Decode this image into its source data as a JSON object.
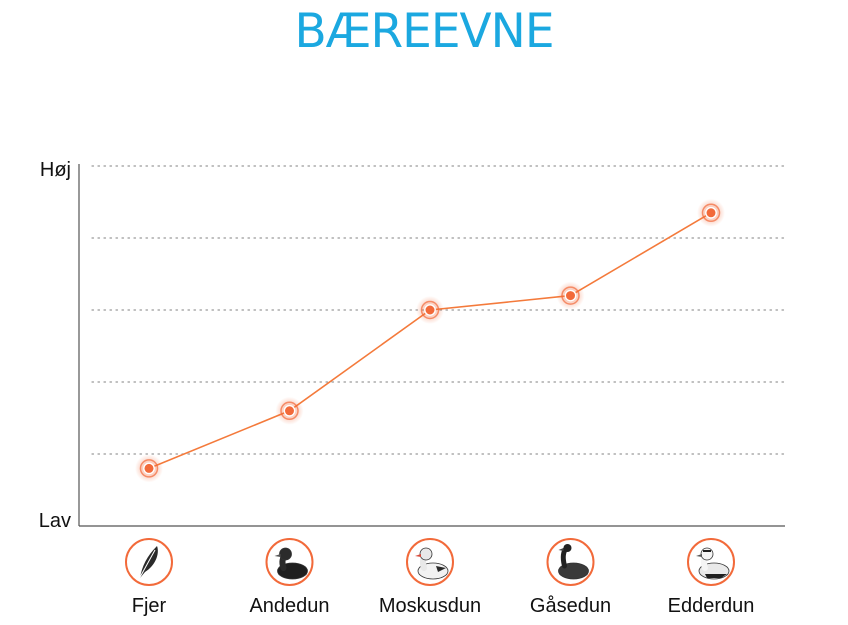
{
  "chart_data": {
    "type": "line",
    "title": "BÆREEVNE",
    "categories": [
      "Fjer",
      "Andedun",
      "Moskusdun",
      "Gåsedun",
      "Edderdun"
    ],
    "values": [
      0.16,
      0.32,
      0.6,
      0.64,
      0.87
    ],
    "ylim": [
      0,
      1
    ],
    "y_tick_labels": {
      "high": "Høj",
      "low": "Lav"
    },
    "grid": true,
    "grid_style": "dotted",
    "category_icons": [
      "feather-icon",
      "duck-icon",
      "muscovy-duck-icon",
      "goose-icon",
      "eider-duck-icon"
    ],
    "colors": {
      "title": "#1ba8e0",
      "line": "#f47a3b",
      "marker": "#f26a3a",
      "icon_ring": "#f26a3a",
      "grid": "#9a9a9a",
      "axis": "#555555"
    }
  }
}
